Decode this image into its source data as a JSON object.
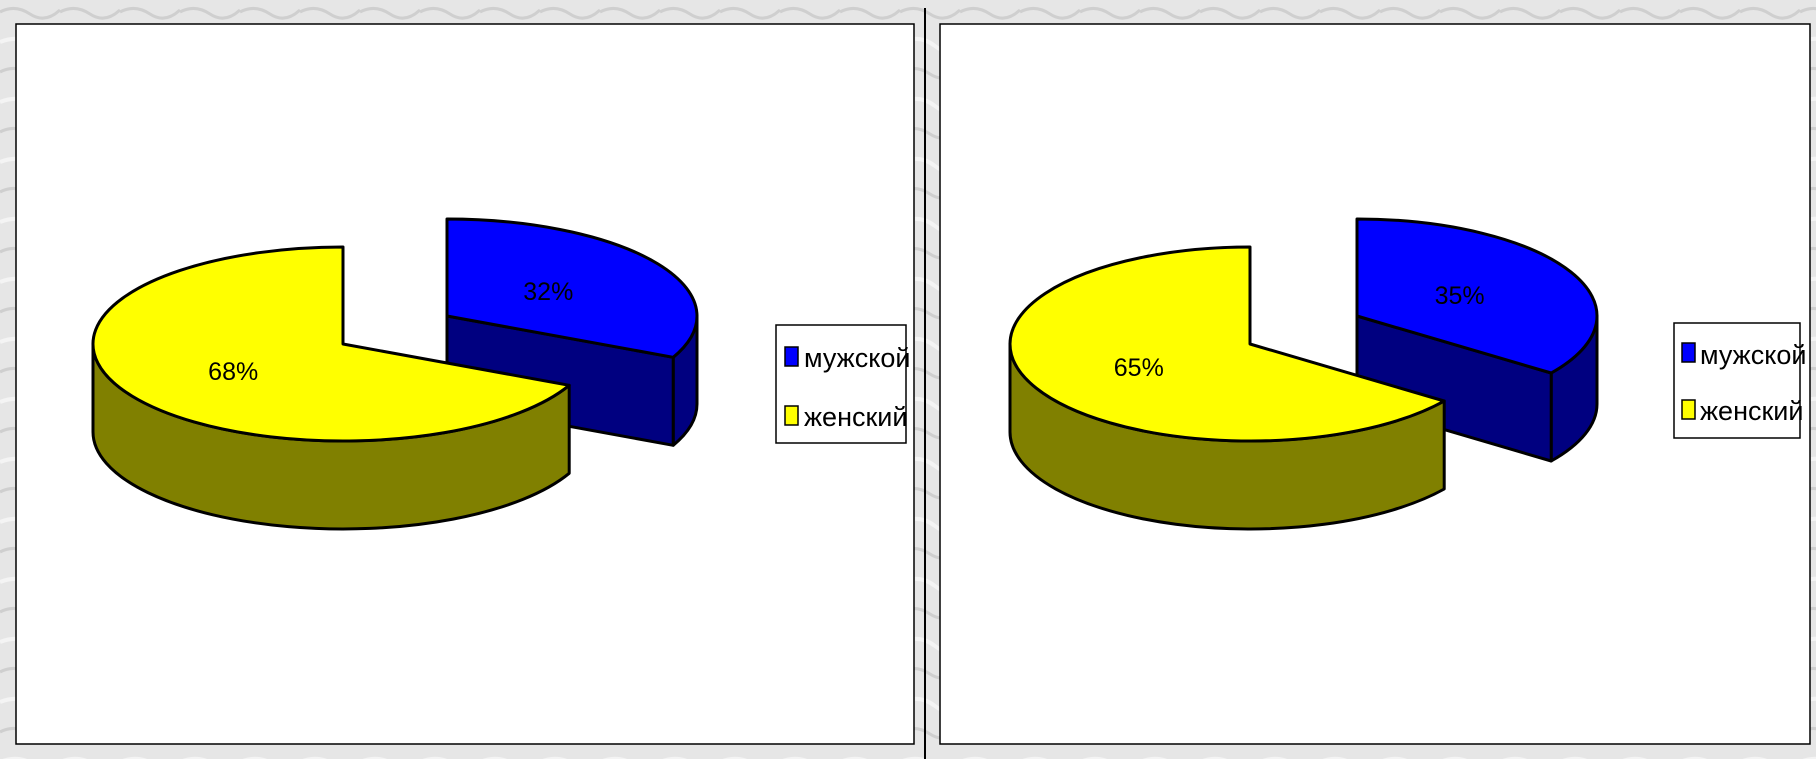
{
  "chart_data": [
    {
      "type": "pie",
      "three_d": true,
      "exploded": true,
      "categories": [
        "мужской",
        "женский"
      ],
      "values": [
        32,
        68
      ],
      "labels": [
        "32%",
        "68%"
      ],
      "legend_position": "right",
      "colors": {
        "мужской": {
          "top": "#0000FF",
          "side": "#000080"
        },
        "женский": {
          "top": "#FFFF00",
          "side": "#808000"
        }
      }
    },
    {
      "type": "pie",
      "three_d": true,
      "exploded": true,
      "categories": [
        "мужской",
        "женский"
      ],
      "values": [
        35,
        65
      ],
      "labels": [
        "35%",
        "65%"
      ],
      "legend_position": "right",
      "colors": {
        "мужской": {
          "top": "#0000FF",
          "side": "#000080"
        },
        "женский": {
          "top": "#FFFF00",
          "side": "#808000"
        }
      }
    }
  ]
}
